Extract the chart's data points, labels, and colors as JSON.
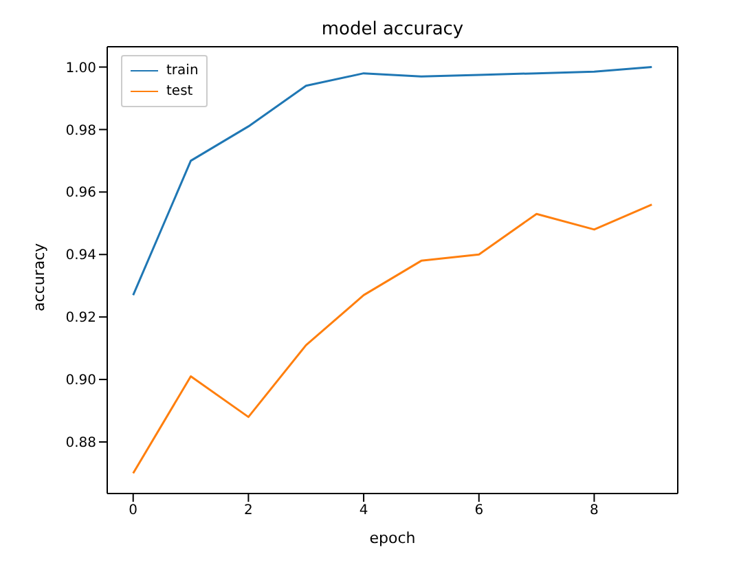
{
  "chart_data": {
    "type": "line",
    "title": "model accuracy",
    "xlabel": "epoch",
    "ylabel": "accuracy",
    "x": [
      0,
      1,
      2,
      3,
      4,
      5,
      6,
      7,
      8,
      9
    ],
    "series": [
      {
        "name": "train",
        "color": "#1f77b4",
        "values": [
          0.927,
          0.97,
          0.981,
          0.994,
          0.998,
          0.997,
          0.9975,
          0.998,
          0.9985,
          1.0
        ]
      },
      {
        "name": "test",
        "color": "#ff7f0e",
        "values": [
          0.87,
          0.901,
          0.888,
          0.911,
          0.927,
          0.938,
          0.94,
          0.953,
          0.948,
          0.956
        ]
      }
    ],
    "xlim": [
      -0.45,
      9.45
    ],
    "xticks": [
      0,
      2,
      4,
      6,
      8
    ],
    "ylim": [
      0.8635,
      1.0065
    ],
    "yticks": [
      0.88,
      {
        "value": 0.9,
        "label": "0.90"
      },
      0.92,
      0.94,
      0.96,
      0.98,
      {
        "value": 1,
        "label": "1.00"
      }
    ],
    "grid": false,
    "legend": "top left",
    "marker": "none",
    "line_style": "solid"
  }
}
